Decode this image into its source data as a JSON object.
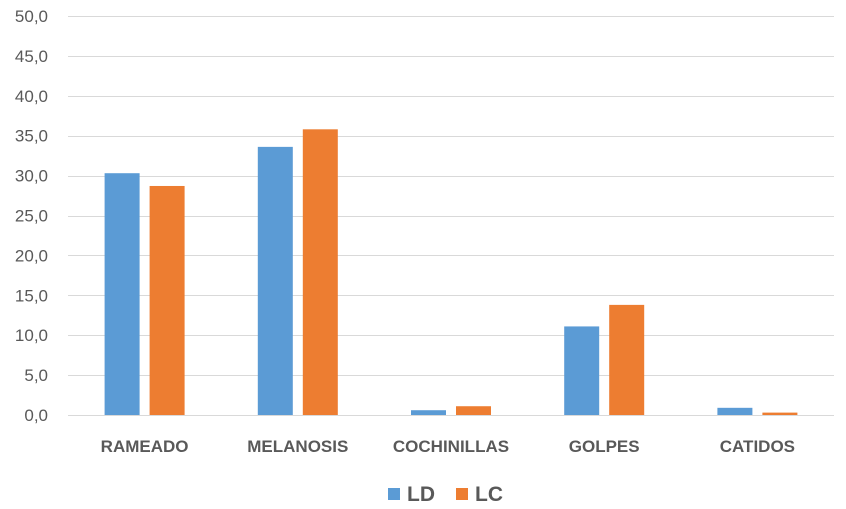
{
  "chart_data": {
    "type": "bar",
    "categories": [
      "RAMEADO",
      "MELANOSIS",
      "COCHINILLAS",
      "GOLPES",
      "CATIDOS"
    ],
    "series": [
      {
        "name": "LD",
        "color": "#5b9bd5",
        "values": [
          30.3,
          33.6,
          0.6,
          11.1,
          0.9
        ]
      },
      {
        "name": "LC",
        "color": "#ed7d31",
        "values": [
          28.7,
          35.8,
          1.1,
          13.8,
          0.3
        ]
      }
    ],
    "ylim": [
      0,
      50
    ],
    "y_ticks": [
      0,
      5,
      10,
      15,
      20,
      25,
      30,
      35,
      40,
      45,
      50
    ],
    "y_tick_labels": [
      "0,0",
      "5,0",
      "10,0",
      "15,0",
      "20,0",
      "25,0",
      "30,0",
      "35,0",
      "40,0",
      "45,0",
      "50,0"
    ],
    "grid": true,
    "legend_position": "bottom"
  }
}
